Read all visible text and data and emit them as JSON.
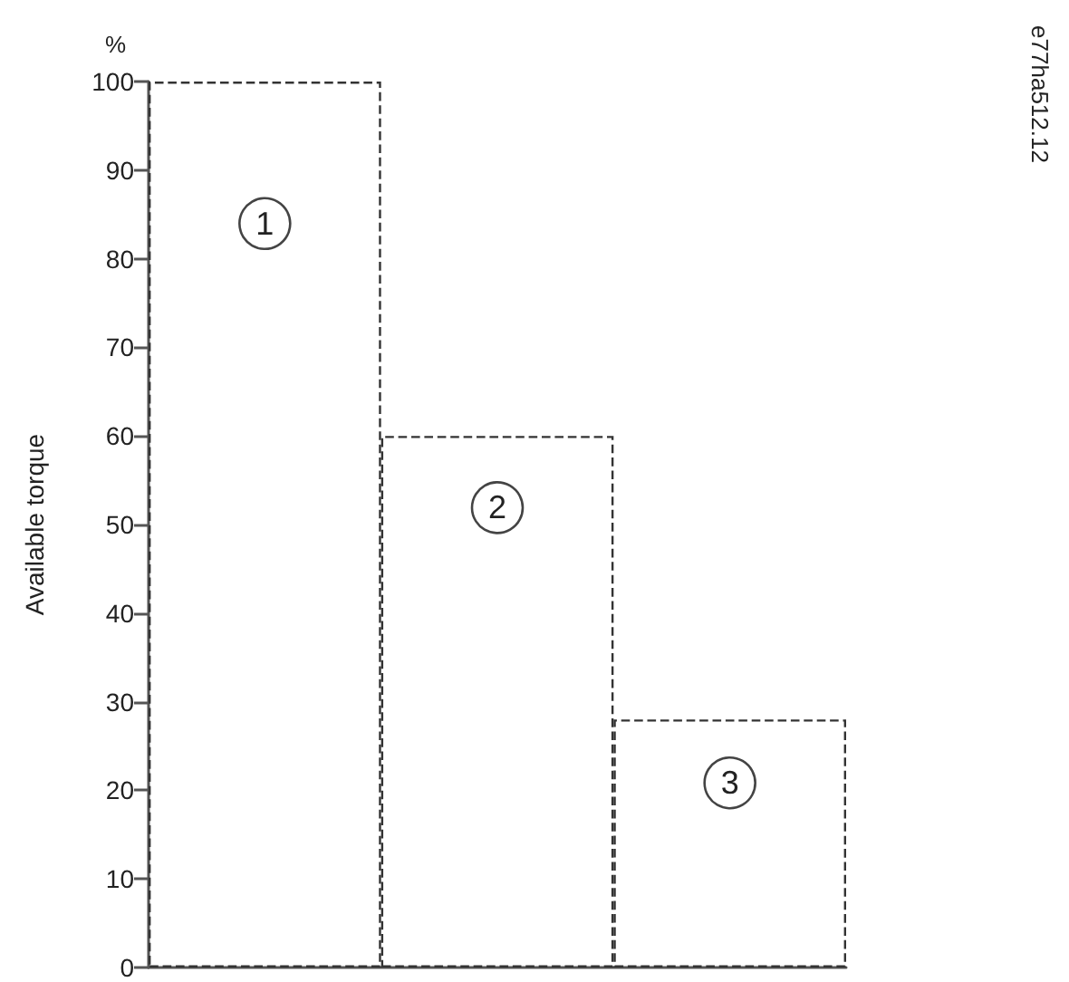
{
  "chart_data": {
    "type": "bar",
    "ylabel": "Available torque",
    "categories": [
      null,
      null,
      null
    ],
    "values": [
      100,
      60,
      28
    ],
    "color": "#333333",
    "line_style": "dashed",
    "ylim": [
      0,
      100
    ],
    "yticks": [
      0,
      10,
      20,
      30,
      40,
      50,
      60,
      70,
      80,
      90,
      100
    ],
    "grid": false,
    "annotations": [
      "%",
      "e77ha512.12",
      {
        "text": "1",
        "y": 84
      },
      {
        "text": "2",
        "y": 52
      },
      {
        "text": "3",
        "y": 21
      }
    ]
  }
}
